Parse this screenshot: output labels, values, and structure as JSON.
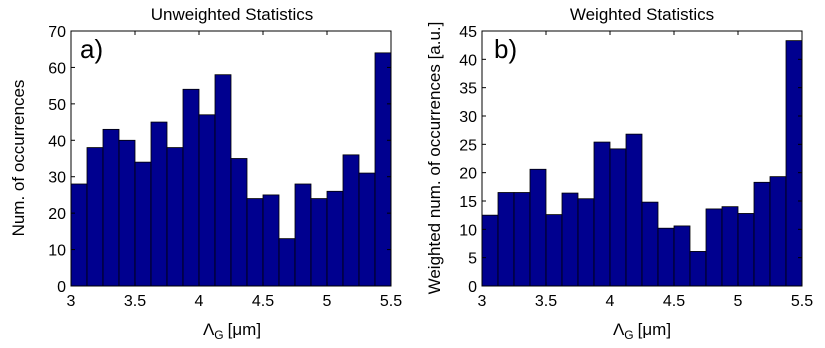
{
  "colors": {
    "bar_fill": "#00008f",
    "bar_stroke": "#000000",
    "axis": "#000000",
    "background": "#ffffff"
  },
  "chart_data": [
    {
      "type": "bar",
      "title": "Unweighted Statistics",
      "panel_label": "a)",
      "xlabel_symbol": "Λ",
      "xlabel_subscript": "G",
      "xlabel_unit": "[μm]",
      "ylabel": "Num. of occurrences",
      "xlim": [
        3,
        5.5
      ],
      "ylim": [
        0,
        70
      ],
      "xticks": [
        3,
        3.5,
        4,
        4.5,
        5,
        5.5
      ],
      "xtick_labels": [
        "3",
        "3.5",
        "4",
        "4.5",
        "5",
        "5.5"
      ],
      "yticks": [
        0,
        10,
        20,
        30,
        40,
        50,
        60,
        70
      ],
      "ytick_labels": [
        "0",
        "10",
        "20",
        "30",
        "40",
        "50",
        "60",
        "70"
      ],
      "bin_start": 3.0,
      "bin_width": 0.125,
      "values": [
        28,
        38,
        43,
        40,
        34,
        45,
        38,
        54,
        47,
        58,
        35,
        24,
        25,
        13,
        28,
        24,
        26,
        36,
        31,
        64
      ],
      "grid": false
    },
    {
      "type": "bar",
      "title": "Weighted Statistics",
      "panel_label": "b)",
      "xlabel_symbol": "Λ",
      "xlabel_subscript": "G",
      "xlabel_unit": "[μm]",
      "ylabel": "Weighted num. of occurrences [a.u.]",
      "xlim": [
        3,
        5.5
      ],
      "ylim": [
        0,
        45
      ],
      "xticks": [
        3,
        3.5,
        4,
        4.5,
        5,
        5.5
      ],
      "xtick_labels": [
        "3",
        "3.5",
        "4",
        "4.5",
        "5",
        "5.5"
      ],
      "yticks": [
        0,
        5,
        10,
        15,
        20,
        25,
        30,
        35,
        40,
        45
      ],
      "ytick_labels": [
        "0",
        "5",
        "10",
        "15",
        "20",
        "25",
        "30",
        "35",
        "40",
        "45"
      ],
      "bin_start": 3.0,
      "bin_width": 0.125,
      "values": [
        12.5,
        16.5,
        16.5,
        20.6,
        12.6,
        16.4,
        15.4,
        25.4,
        24.2,
        26.8,
        14.8,
        10.2,
        10.6,
        6.1,
        13.6,
        14.0,
        12.8,
        18.3,
        19.3,
        43.3
      ],
      "grid": false
    }
  ]
}
